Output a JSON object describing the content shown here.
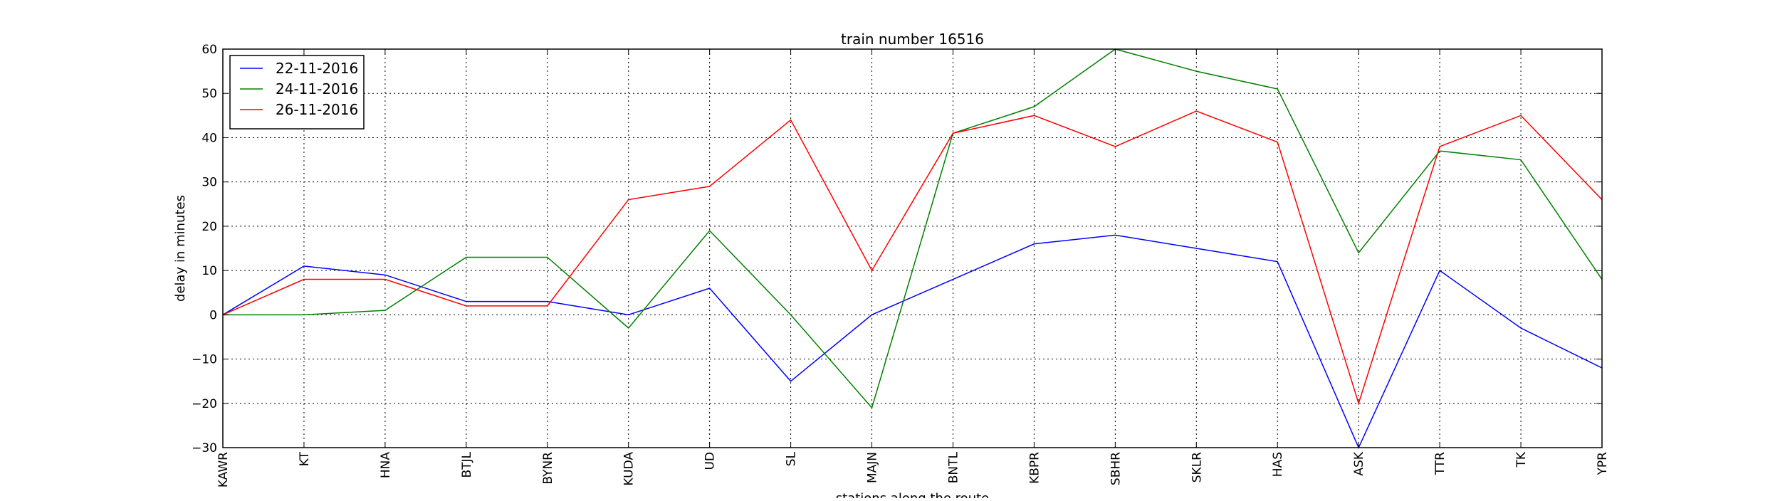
{
  "chart_data": {
    "type": "line",
    "title": "train number 16516",
    "xlabel": "stations along the route",
    "ylabel": "delay in minutes",
    "categories": [
      "KAWR",
      "KT",
      "HNA",
      "BTJL",
      "BYNR",
      "KUDA",
      "UD",
      "SL",
      "MAJN",
      "BNTL",
      "KBPR",
      "SBHR",
      "SKLR",
      "HAS",
      "ASK",
      "TTR",
      "TK",
      "YPR"
    ],
    "ylim": [
      -30,
      60
    ],
    "yticks": [
      -30,
      -20,
      -10,
      0,
      10,
      20,
      30,
      40,
      50,
      60
    ],
    "grid": true,
    "legend_position": "top-left",
    "series": [
      {
        "name": "22-11-2016",
        "color": "#0000ff",
        "values": [
          0,
          11,
          9,
          3,
          3,
          0,
          6,
          -15,
          0,
          8,
          16,
          18,
          15,
          12,
          -30,
          10,
          -3,
          -12
        ]
      },
      {
        "name": "24-11-2016",
        "color": "#008000",
        "values": [
          0,
          0,
          1,
          13,
          13,
          -3,
          19,
          0,
          -21,
          41,
          47,
          60,
          55,
          51,
          14,
          37,
          35,
          8
        ]
      },
      {
        "name": "26-11-2016",
        "color": "#ff0000",
        "values": [
          0,
          8,
          8,
          2,
          2,
          26,
          29,
          44,
          10,
          41,
          45,
          38,
          46,
          39,
          -20,
          38,
          45,
          26
        ]
      }
    ]
  }
}
